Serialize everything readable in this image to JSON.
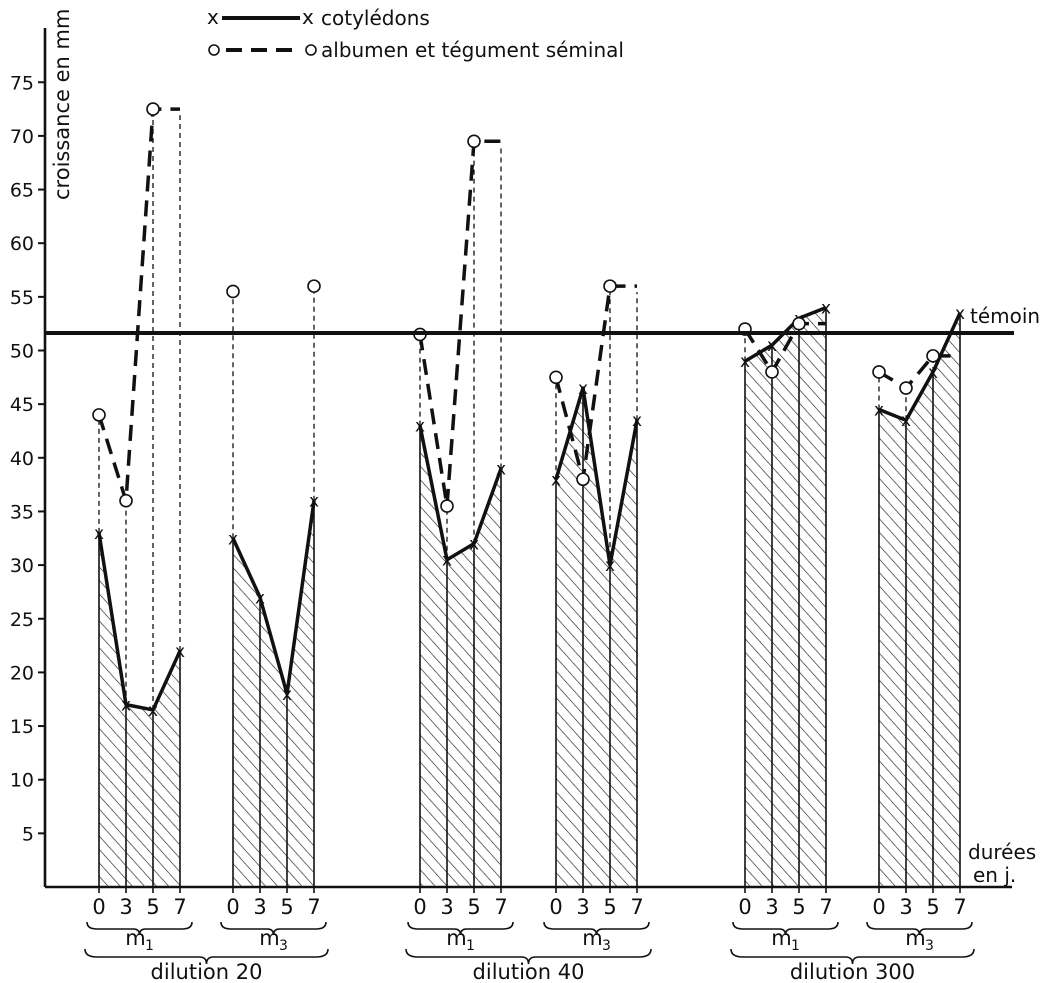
{
  "chart_data": {
    "type": "line",
    "ylabel": "croissance en mm",
    "xlabel": "durées en j.",
    "xlabel_lines": [
      "durées",
      "en j."
    ],
    "y_ticks": [
      "5",
      "10",
      "15",
      "20",
      "25",
      "30",
      "35",
      "40",
      "45",
      "50",
      "55",
      "60",
      "65",
      "70",
      "75"
    ],
    "ylim": [
      0,
      80
    ],
    "reference_line": {
      "label": "témoin",
      "value": 51.5
    },
    "legend": [
      {
        "name": "cotylédons",
        "style": "solid",
        "marker": "x"
      },
      {
        "name": "albumen et tégument séminal",
        "style": "dashed",
        "marker": "o"
      }
    ],
    "days": [
      "0",
      "3",
      "5",
      "7"
    ],
    "groups": [
      {
        "dilution": "dilution 20",
        "mode": "m1",
        "mode_label": "m",
        "mode_sub": "1",
        "cotyledons": [
          33,
          17,
          16.5,
          22
        ],
        "albumen": [
          44,
          36,
          72.5,
          72.5
        ]
      },
      {
        "dilution": "dilution 20",
        "mode": "m3",
        "mode_label": "m",
        "mode_sub": "3",
        "cotyledons": [
          32.5,
          27,
          18,
          36
        ],
        "albumen": [
          55.5,
          null,
          null,
          56
        ]
      },
      {
        "dilution": "dilution 40",
        "mode": "m1",
        "mode_label": "m",
        "mode_sub": "1",
        "cotyledons": [
          43,
          30.5,
          32,
          39
        ],
        "albumen": [
          51.5,
          35.5,
          69.5,
          69.5
        ]
      },
      {
        "dilution": "dilution 40",
        "mode": "m3",
        "mode_label": "m",
        "mode_sub": "3",
        "cotyledons": [
          38,
          46.5,
          30,
          43.5
        ],
        "albumen": [
          47.5,
          38,
          56,
          56
        ]
      },
      {
        "dilution": "dilution 300",
        "mode": "m1",
        "mode_label": "m",
        "mode_sub": "1",
        "cotyledons": [
          49,
          50.5,
          53,
          54
        ],
        "albumen": [
          52,
          48,
          52.5,
          52.5
        ]
      },
      {
        "dilution": "dilution 300",
        "mode": "m3",
        "mode_label": "m",
        "mode_sub": "3",
        "cotyledons": [
          44.5,
          43.5,
          48,
          53.5
        ],
        "albumen": [
          48,
          46.5,
          49.5,
          49.5
        ]
      }
    ],
    "dilutions": [
      "dilution 20",
      "dilution 40",
      "dilution 300"
    ]
  }
}
